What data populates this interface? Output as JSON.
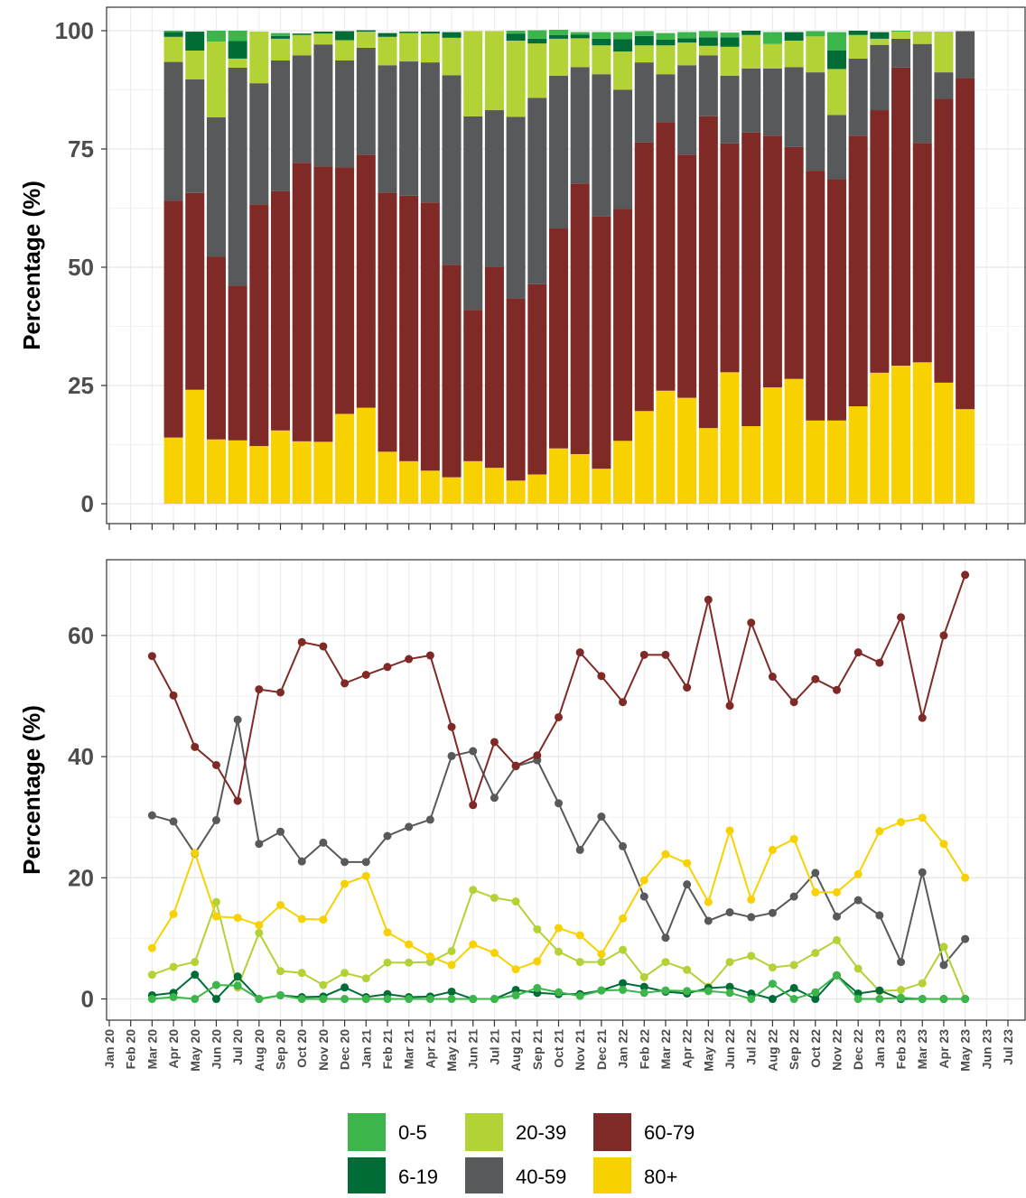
{
  "chart_data": [
    {
      "type": "stacked_bar",
      "ylabel": "Percentage (%)",
      "ylim": [
        0,
        100
      ],
      "yticks": [
        0,
        25,
        50,
        75,
        100
      ],
      "grid": true,
      "series": [
        {
          "values": [
            null,
            null,
            null,
            0.3,
            0,
            2.3,
            2.2,
            0,
            0.6,
            0,
            0,
            0,
            0,
            0,
            0,
            0,
            0,
            0,
            0,
            0.6,
            1.8,
            1.1,
            0.5,
            1.4,
            1.5,
            1.0,
            1.4,
            1.3,
            1.3,
            1.0,
            0,
            2.5,
            0,
            1.1,
            3.9,
            0,
            0,
            0.2,
            0,
            0,
            0,
            null,
            null
          ]
        },
        {
          "values": [
            null,
            null,
            null,
            1.0,
            4.0,
            0,
            3.7,
            0,
            0.6,
            0.3,
            0.4,
            1.9,
            0.3,
            0.8,
            0.3,
            0.4,
            1.2,
            0,
            0,
            1.5,
            1.0,
            0.8,
            0.8,
            1.4,
            2.6,
            2.0,
            1.2,
            0.9,
            1.8,
            2.0,
            0.9,
            0,
            1.8,
            0,
            3.9,
            0.9,
            1.4,
            0,
            0,
            0,
            0,
            null,
            null
          ]
        },
        {
          "values": [
            null,
            null,
            null,
            5.3,
            6.1,
            16.0,
            1.9,
            10.9,
            4.6,
            4.3,
            2.3,
            4.3,
            3.4,
            6.0,
            6.0,
            6.1,
            7.9,
            18.0,
            16.7,
            16.1,
            11.5,
            7.8,
            6.1,
            6.1,
            8.1,
            3.6,
            6.1,
            4.8,
            2.0,
            6.1,
            7.1,
            5.2,
            5.6,
            7.6,
            9.7,
            5.0,
            1.3,
            1.5,
            2.6,
            8.6,
            0,
            null,
            null
          ]
        },
        {
          "values": [
            null,
            null,
            null,
            29.3,
            24.0,
            29.5,
            46.1,
            25.6,
            27.6,
            22.7,
            25.8,
            22.6,
            22.6,
            26.9,
            28.4,
            29.6,
            40.1,
            40.9,
            33.2,
            38.4,
            39.4,
            32.3,
            24.6,
            30.1,
            25.2,
            16.9,
            10.1,
            18.9,
            12.9,
            14.3,
            13.5,
            14.2,
            16.9,
            20.8,
            13.6,
            16.3,
            13.8,
            6.1,
            20.9,
            5.6,
            9.9,
            null,
            null
          ]
        },
        {
          "values": [
            null,
            null,
            null,
            50.1,
            41.6,
            38.6,
            32.7,
            51.1,
            50.6,
            58.9,
            58.2,
            52.1,
            53.5,
            54.8,
            56.1,
            56.7,
            44.9,
            32.0,
            42.4,
            38.5,
            40.2,
            46.5,
            57.2,
            53.3,
            49.0,
            56.8,
            56.8,
            51.4,
            65.9,
            48.4,
            62.1,
            53.2,
            49.0,
            52.8,
            51.0,
            57.2,
            55.5,
            63.0,
            46.4,
            60.0,
            70.0,
            null,
            null
          ]
        },
        {
          "values": [
            null,
            null,
            null,
            14.0,
            24.1,
            13.6,
            13.4,
            12.2,
            15.5,
            13.2,
            13.1,
            19.0,
            20.3,
            11.0,
            9.0,
            7.0,
            5.6,
            9.0,
            7.6,
            4.9,
            6.2,
            11.7,
            10.5,
            7.4,
            13.3,
            19.6,
            23.9,
            22.4,
            16.0,
            27.8,
            16.4,
            24.6,
            26.4,
            17.6,
            17.6,
            20.6,
            27.7,
            29.2,
            29.9,
            25.6,
            20.0,
            null,
            null
          ]
        }
      ]
    },
    {
      "type": "line",
      "ylabel": "Percentage (%)",
      "ylim": [
        -3.5,
        72.5
      ],
      "yticks": [
        0,
        20,
        40,
        60
      ],
      "grid": true,
      "categories": [
        "Jan 20",
        "Feb 20",
        "Mar 20",
        "Apr 20",
        "May 20",
        "Jun 20",
        "Jul 20",
        "Aug 20",
        "Sep 20",
        "Oct 20",
        "Nov 20",
        "Dec 20",
        "Jan 21",
        "Feb 21",
        "Mar 21",
        "Apr 21",
        "May 21",
        "Jun 21",
        "Jul 21",
        "Aug 21",
        "Sep 21",
        "Oct 21",
        "Nov 21",
        "Dec 21",
        "Jan 22",
        "Feb 22",
        "Mar 22",
        "Apr 22",
        "May 22",
        "Jun 22",
        "Jul 22",
        "Aug 22",
        "Sep 22",
        "Oct 22",
        "Nov 22",
        "Dec 22",
        "Jan 23",
        "Feb 23",
        "Mar 23",
        "Apr 23",
        "May 23",
        "Jun 23",
        "Jul 23"
      ],
      "series": [
        {
          "name": "0-5",
          "color": "#3cb54a",
          "values": [
            null,
            null,
            0,
            0.3,
            0,
            2.3,
            2.2,
            0,
            0.6,
            0,
            0,
            0,
            0,
            0,
            0,
            0,
            0,
            0,
            0,
            0.6,
            1.8,
            1.1,
            0.5,
            1.4,
            1.5,
            1.0,
            1.4,
            1.3,
            1.3,
            1.0,
            0,
            2.5,
            0,
            1.1,
            3.9,
            0,
            0,
            0.2,
            0,
            0,
            0,
            null,
            null
          ]
        },
        {
          "name": "6-19",
          "color": "#006d36",
          "values": [
            null,
            null,
            0.6,
            1.0,
            4.0,
            0,
            3.7,
            0,
            0.6,
            0.3,
            0.4,
            1.9,
            0.3,
            0.8,
            0.3,
            0.4,
            1.2,
            0,
            0,
            1.5,
            1.0,
            0.8,
            0.8,
            1.4,
            2.6,
            2.0,
            1.2,
            0.9,
            1.8,
            2.0,
            0.9,
            0,
            1.8,
            0,
            3.9,
            0.9,
            1.4,
            0,
            0,
            0,
            0,
            null,
            null
          ]
        },
        {
          "name": "20-39",
          "color": "#b2d235",
          "values": [
            null,
            null,
            4.0,
            5.3,
            6.1,
            16.0,
            1.9,
            10.9,
            4.6,
            4.3,
            2.3,
            4.3,
            3.4,
            6.0,
            6.0,
            6.1,
            7.9,
            18.0,
            16.7,
            16.1,
            11.5,
            7.8,
            6.1,
            6.1,
            8.1,
            3.6,
            6.1,
            4.8,
            2.0,
            6.1,
            7.1,
            5.2,
            5.6,
            7.6,
            9.7,
            5.0,
            1.3,
            1.5,
            2.6,
            8.6,
            0,
            null,
            null
          ]
        },
        {
          "name": "40-59",
          "color": "#58595b",
          "values": [
            null,
            null,
            30.3,
            29.3,
            24.0,
            29.5,
            46.1,
            25.6,
            27.6,
            22.7,
            25.8,
            22.6,
            22.6,
            26.9,
            28.4,
            29.6,
            40.1,
            40.9,
            33.2,
            38.4,
            39.4,
            32.3,
            24.6,
            30.1,
            25.2,
            16.9,
            10.1,
            18.9,
            12.9,
            14.3,
            13.5,
            14.2,
            16.9,
            20.8,
            13.6,
            16.3,
            13.8,
            6.1,
            20.9,
            5.6,
            9.9,
            null,
            null
          ]
        },
        {
          "name": "60-79",
          "color": "#7f2a27",
          "values": [
            null,
            null,
            56.6,
            50.1,
            41.6,
            38.6,
            32.7,
            51.1,
            50.6,
            58.9,
            58.2,
            52.1,
            53.5,
            54.8,
            56.1,
            56.7,
            44.9,
            32.0,
            42.4,
            38.5,
            40.2,
            46.5,
            57.2,
            53.3,
            49.0,
            56.8,
            56.8,
            51.4,
            65.9,
            48.4,
            62.1,
            53.2,
            49.0,
            52.8,
            51.0,
            57.2,
            55.5,
            63.0,
            46.4,
            60.0,
            70.0,
            null,
            null
          ]
        },
        {
          "name": "80+",
          "color": "#f7d200",
          "values": [
            null,
            null,
            8.4,
            14.0,
            24.1,
            13.6,
            13.4,
            12.2,
            15.5,
            13.2,
            13.1,
            19.0,
            20.3,
            11.0,
            9.0,
            7.0,
            5.6,
            9.0,
            7.6,
            4.9,
            6.2,
            11.7,
            10.5,
            7.4,
            13.3,
            19.6,
            23.9,
            22.4,
            16.0,
            27.8,
            16.4,
            24.6,
            26.4,
            17.6,
            17.6,
            20.6,
            27.7,
            29.2,
            29.9,
            25.6,
            20.0,
            null,
            null
          ]
        }
      ]
    }
  ]
}
